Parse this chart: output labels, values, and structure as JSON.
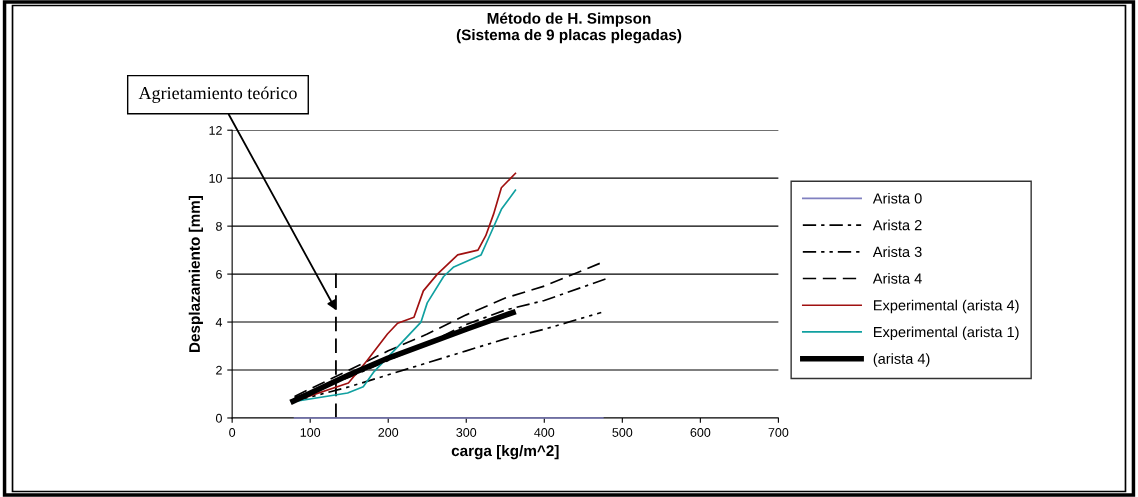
{
  "chart_data": {
    "type": "line",
    "title": "Método de H. Simpson\n(Sistema de 9 placas plegadas)",
    "xlabel": "carga [kg/m^2]",
    "ylabel": "Desplazamiento [mm]",
    "xlim": [
      0,
      700
    ],
    "xticks": [
      0,
      100,
      200,
      300,
      400,
      500,
      600,
      700
    ],
    "ylim": [
      0,
      12
    ],
    "yticks": [
      0,
      2,
      4,
      6,
      8,
      10,
      12
    ],
    "grid": "y",
    "legend": "right",
    "marker": "none",
    "series": [
      {
        "name": "Arista 0",
        "color": "#8080c0",
        "line_style": "solid",
        "x": [
          80,
          150,
          200,
          250,
          300,
          350,
          400,
          475
        ],
        "values": [
          0,
          0,
          0,
          0,
          0,
          0,
          0,
          0
        ]
      },
      {
        "name": "Arista 2",
        "color": "#000000",
        "line_style": "dashdot",
        "x": [
          80,
          150,
          200,
          250,
          300,
          350,
          400,
          479
        ],
        "values": [
          0.85,
          1.7,
          2.4,
          3.1,
          3.9,
          4.5,
          4.9,
          5.8
        ]
      },
      {
        "name": "Arista 3",
        "color": "#000000",
        "line_style": "dashdotdot",
        "x": [
          80,
          150,
          200,
          250,
          300,
          350,
          400,
          473
        ],
        "values": [
          0.7,
          1.3,
          1.8,
          2.3,
          2.8,
          3.3,
          3.7,
          4.4
        ]
      },
      {
        "name": "Arista 4",
        "color": "#000000",
        "line_style": "dashed",
        "x": [
          80,
          150,
          200,
          250,
          300,
          350,
          400,
          475
        ],
        "values": [
          0.9,
          2.0,
          2.8,
          3.5,
          4.3,
          5.0,
          5.5,
          6.5
        ]
      },
      {
        "name": "Experimental (arista 4)",
        "color": "#a01010",
        "line_style": "solid",
        "x": [
          77,
          149,
          173,
          199,
          212,
          233,
          245,
          263,
          289,
          315,
          325,
          335,
          345,
          363
        ],
        "values": [
          0.67,
          1.46,
          2.4,
          3.5,
          3.95,
          4.2,
          5.3,
          6.0,
          6.8,
          7.0,
          7.6,
          8.5,
          9.6,
          10.2
        ]
      },
      {
        "name": "Experimental (arista 1)",
        "color": "#10a0a0",
        "line_style": "solid",
        "x": [
          77,
          148,
          168,
          181,
          216,
          242,
          250,
          271,
          284,
          319,
          330,
          345,
          363
        ],
        "values": [
          0.67,
          1.04,
          1.3,
          1.9,
          3.1,
          4.0,
          4.8,
          5.9,
          6.3,
          6.8,
          7.6,
          8.7,
          9.5
        ]
      },
      {
        "name": "(arista 4)",
        "color": "#000000",
        "line_style": "solid",
        "x": [
          78,
          150,
          200,
          250,
          300,
          360
        ],
        "values": [
          0.7,
          1.8,
          2.5,
          3.1,
          3.7,
          4.4
        ]
      }
    ],
    "ref_lines": [
      {
        "axis": "x",
        "value": 133,
        "line_style": "dashed",
        "color": "#000000"
      }
    ],
    "annotations": [
      {
        "text": "Agrietamiento teórico",
        "x": 133,
        "y": 4.5
      }
    ]
  }
}
